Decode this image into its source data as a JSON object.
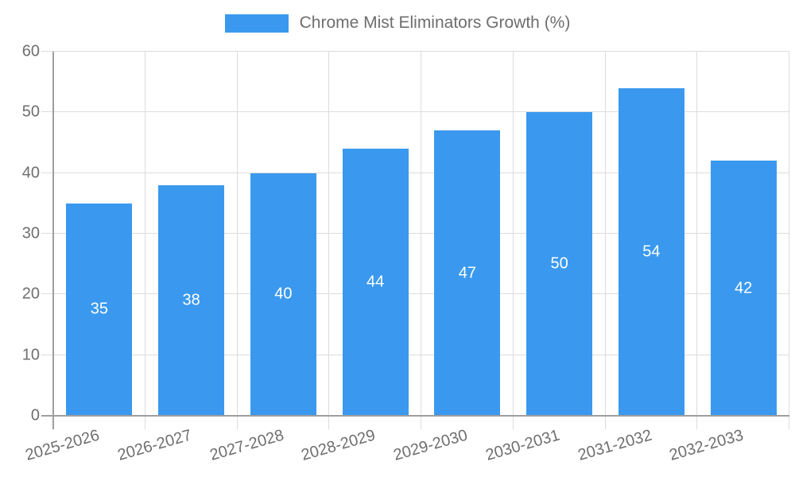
{
  "chart_data": {
    "type": "bar",
    "title": "Chrome Mist Eliminators Growth (%)",
    "categories": [
      "2025-2026",
      "2026-2027",
      "2027-2028",
      "2028-2029",
      "2029-2030",
      "2030-2031",
      "2031-2032",
      "2032-2033"
    ],
    "values": [
      35,
      38,
      40,
      44,
      47,
      50,
      54,
      42
    ],
    "xlabel": "",
    "ylabel": "",
    "ylim": [
      0,
      60
    ],
    "yticks": [
      0,
      10,
      20,
      30,
      40,
      50,
      60
    ],
    "grid": true,
    "legend_position": "top-center",
    "value_labels": "inside-center",
    "colors": {
      "bar": "#3A99EE",
      "value_label": "#FFFFFF",
      "axis": "#9E9E9E",
      "gridline": "#DCDCDC",
      "text": "#6E6E6E"
    }
  }
}
